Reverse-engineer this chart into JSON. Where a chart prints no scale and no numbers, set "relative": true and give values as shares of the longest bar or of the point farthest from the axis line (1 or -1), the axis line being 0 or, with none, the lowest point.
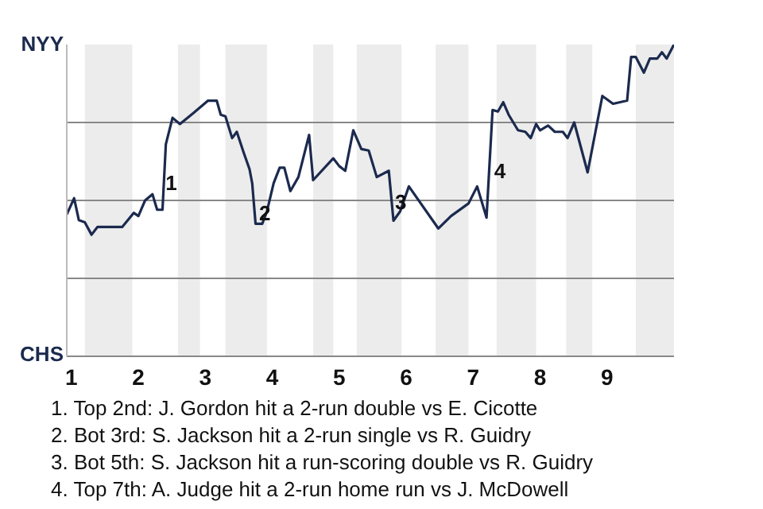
{
  "chart_data": {
    "type": "line",
    "x": [
      0.93,
      1.04,
      1.11,
      1.2,
      1.3,
      1.39,
      1.76,
      1.93,
      2,
      2.1,
      2.21,
      2.28,
      2.36,
      2.41,
      2.51,
      2.62,
      2.82,
      3.04,
      3.17,
      3.23,
      3.3,
      3.4,
      3.47,
      3.57,
      3.66,
      3.7,
      3.75,
      3.85,
      3.92,
      4.02,
      4.11,
      4.18,
      4.27,
      4.39,
      4.55,
      4.61,
      4.91,
      5,
      5.09,
      5.21,
      5.33,
      5.44,
      5.56,
      5.74,
      5.81,
      5.91,
      6.04,
      6.48,
      6.67,
      6.93,
      7.06,
      7.2,
      7.29,
      7.37,
      7.45,
      7.53,
      7.67,
      7.78,
      7.86,
      7.94,
      8,
      8.12,
      8.22,
      8.34,
      8.41,
      8.51,
      8.71,
      8.93,
      9.09,
      9.3,
      9.36,
      9.43,
      9.55,
      9.64,
      9.75,
      9.82,
      9.89,
      10
    ],
    "relative": true,
    "series": [
      {
        "color": "#1b2a4e",
        "values": [
          0.455,
          0.507,
          0.437,
          0.43,
          0.39,
          0.415,
          0.415,
          0.46,
          0.45,
          0.5,
          0.52,
          0.47,
          0.47,
          0.68,
          0.765,
          0.745,
          0.78,
          0.82,
          0.82,
          0.775,
          0.77,
          0.7,
          0.72,
          0.655,
          0.6,
          0.555,
          0.425,
          0.425,
          0.465,
          0.555,
          0.605,
          0.605,
          0.53,
          0.575,
          0.71,
          0.565,
          0.635,
          0.61,
          0.595,
          0.725,
          0.665,
          0.66,
          0.575,
          0.595,
          0.435,
          0.465,
          0.545,
          0.41,
          0.45,
          0.49,
          0.545,
          0.445,
          0.79,
          0.785,
          0.815,
          0.775,
          0.725,
          0.72,
          0.7,
          0.745,
          0.725,
          0.74,
          0.72,
          0.72,
          0.7,
          0.75,
          0.59,
          0.835,
          0.81,
          0.82,
          0.96,
          0.96,
          0.91,
          0.955,
          0.955,
          0.975,
          0.955,
          1
        ]
      }
    ],
    "xlim": [
      0.93,
      10
    ],
    "xticks": [
      1,
      2,
      3,
      4,
      5,
      6,
      7,
      8,
      9
    ],
    "marker": "none",
    "line_style": "solid",
    "ref_lines": [
      {
        "axis": "y",
        "value": 0.25,
        "color": "#888888"
      },
      {
        "axis": "y",
        "value": 0.5,
        "color": "#888888"
      },
      {
        "axis": "y",
        "value": 0.75,
        "color": "#888888"
      }
    ],
    "bands": [
      {
        "axis": "x",
        "from": 1.2,
        "to": 1.91,
        "color": "#ececec"
      },
      {
        "axis": "x",
        "from": 2.59,
        "to": 2.92,
        "color": "#ececec"
      },
      {
        "axis": "x",
        "from": 3.3,
        "to": 3.92,
        "color": "#ececec"
      },
      {
        "axis": "x",
        "from": 4.61,
        "to": 4.91,
        "color": "#ececec"
      },
      {
        "axis": "x",
        "from": 5.26,
        "to": 5.93,
        "color": "#ececec"
      },
      {
        "axis": "x",
        "from": 6.44,
        "to": 6.93,
        "color": "#ececec"
      },
      {
        "axis": "x",
        "from": 7.35,
        "to": 7.94,
        "color": "#ececec"
      },
      {
        "axis": "x",
        "from": 8.39,
        "to": 8.78,
        "color": "#ececec"
      },
      {
        "axis": "x",
        "from": 9.43,
        "to": 10,
        "color": "#ececec"
      }
    ],
    "annotations": [
      "NYY",
      "CHS",
      {
        "text": "1",
        "x": 2.38,
        "y": 0.55
      },
      {
        "text": "2",
        "x": 3.78,
        "y": 0.455
      },
      {
        "text": "3",
        "x": 5.81,
        "y": 0.49
      },
      {
        "text": "4",
        "x": 7.29,
        "y": 0.59
      },
      "1. Top 2nd: J. Gordon hit a 2-run double vs E. Cicotte",
      "2. Bot 3rd: S. Jackson hit a 2-run single vs R. Guidry",
      "3. Bot 5th: S. Jackson hit a run-scoring double vs R. Guidry",
      "4. Top 7th: A. Judge hit a 2-run home run vs J. McDowell"
    ]
  }
}
